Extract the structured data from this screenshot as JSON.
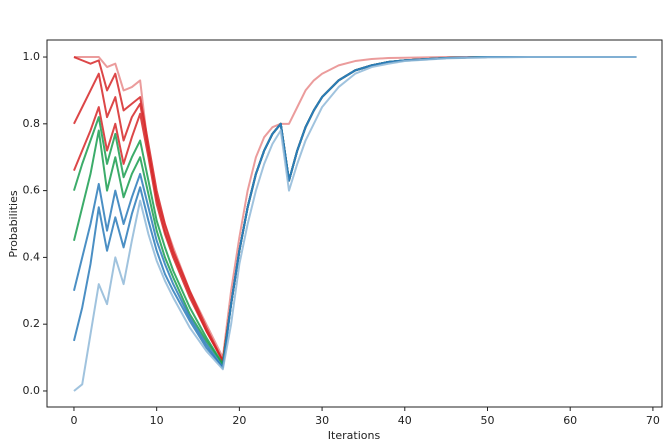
{
  "chart_data": {
    "type": "line",
    "xlabel": "Iterations",
    "ylabel": "Probabilities",
    "x": [
      0,
      1,
      2,
      3,
      4,
      5,
      6,
      7,
      8,
      9,
      10,
      11,
      12,
      14,
      16,
      18,
      19,
      20,
      21,
      22,
      23,
      24,
      25,
      26,
      27,
      28,
      29,
      30,
      32,
      34,
      36,
      38,
      40,
      45,
      50,
      55,
      60,
      68
    ],
    "series": [
      {
        "color": "#e88b8b",
        "values": [
          1.0,
          1.0,
          1.0,
          1.0,
          0.97,
          0.98,
          0.9,
          0.91,
          0.93,
          0.72,
          0.58,
          0.5,
          0.43,
          0.3,
          0.2,
          0.1,
          0.3,
          0.46,
          0.6,
          0.7,
          0.76,
          0.79,
          0.8,
          0.8,
          0.85,
          0.9,
          0.93,
          0.95,
          0.975,
          0.988,
          0.994,
          0.997,
          0.998,
          1.0,
          1.0,
          1.0,
          1.0,
          1.0
        ]
      },
      {
        "color": "#d62728",
        "values": [
          1.0,
          0.99,
          0.98,
          0.99,
          0.9,
          0.95,
          0.84,
          0.86,
          0.88,
          0.74,
          0.6,
          0.5,
          0.42,
          0.3,
          0.19,
          0.09,
          0.26,
          0.42,
          0.55,
          0.65,
          0.72,
          0.77,
          0.8,
          0.63,
          0.72,
          0.79,
          0.84,
          0.88,
          0.93,
          0.96,
          0.975,
          0.985,
          0.99,
          0.997,
          1.0,
          1.0,
          1.0,
          1.0
        ]
      },
      {
        "color": "#d62728",
        "values": [
          0.8,
          0.85,
          0.9,
          0.95,
          0.82,
          0.88,
          0.75,
          0.82,
          0.86,
          0.72,
          0.58,
          0.48,
          0.41,
          0.29,
          0.18,
          0.09,
          0.26,
          0.42,
          0.55,
          0.65,
          0.72,
          0.77,
          0.8,
          0.63,
          0.72,
          0.79,
          0.84,
          0.88,
          0.93,
          0.96,
          0.975,
          0.985,
          0.99,
          0.997,
          1.0,
          1.0,
          1.0,
          1.0
        ]
      },
      {
        "color": "#d62728",
        "values": [
          0.66,
          0.72,
          0.78,
          0.85,
          0.72,
          0.8,
          0.68,
          0.76,
          0.83,
          0.7,
          0.56,
          0.47,
          0.4,
          0.28,
          0.18,
          0.09,
          0.26,
          0.42,
          0.55,
          0.65,
          0.72,
          0.77,
          0.8,
          0.63,
          0.72,
          0.79,
          0.84,
          0.88,
          0.93,
          0.96,
          0.975,
          0.985,
          0.99,
          0.997,
          1.0,
          1.0,
          1.0,
          1.0
        ]
      },
      {
        "color": "#1a9e50",
        "values": [
          0.6,
          0.68,
          0.75,
          0.82,
          0.68,
          0.77,
          0.64,
          0.7,
          0.75,
          0.63,
          0.51,
          0.43,
          0.36,
          0.25,
          0.16,
          0.08,
          0.26,
          0.42,
          0.55,
          0.65,
          0.72,
          0.77,
          0.8,
          0.63,
          0.72,
          0.79,
          0.84,
          0.88,
          0.93,
          0.96,
          0.975,
          0.985,
          0.99,
          0.997,
          1.0,
          1.0,
          1.0,
          1.0
        ]
      },
      {
        "color": "#1a9e50",
        "values": [
          0.45,
          0.55,
          0.65,
          0.78,
          0.6,
          0.7,
          0.58,
          0.65,
          0.7,
          0.59,
          0.48,
          0.4,
          0.34,
          0.23,
          0.15,
          0.08,
          0.26,
          0.42,
          0.55,
          0.65,
          0.72,
          0.77,
          0.8,
          0.63,
          0.72,
          0.79,
          0.84,
          0.88,
          0.93,
          0.96,
          0.975,
          0.985,
          0.99,
          0.997,
          1.0,
          1.0,
          1.0,
          1.0
        ]
      },
      {
        "color": "#2b7bba",
        "values": [
          0.3,
          0.4,
          0.5,
          0.62,
          0.48,
          0.6,
          0.5,
          0.58,
          0.65,
          0.55,
          0.45,
          0.38,
          0.32,
          0.22,
          0.14,
          0.07,
          0.26,
          0.42,
          0.55,
          0.65,
          0.72,
          0.77,
          0.8,
          0.63,
          0.72,
          0.79,
          0.84,
          0.88,
          0.93,
          0.96,
          0.975,
          0.985,
          0.99,
          0.997,
          1.0,
          1.0,
          1.0,
          1.0
        ]
      },
      {
        "color": "#2b7bba",
        "values": [
          0.15,
          0.25,
          0.38,
          0.55,
          0.42,
          0.52,
          0.43,
          0.53,
          0.61,
          0.51,
          0.42,
          0.35,
          0.3,
          0.21,
          0.13,
          0.07,
          0.26,
          0.42,
          0.55,
          0.65,
          0.72,
          0.77,
          0.8,
          0.63,
          0.72,
          0.79,
          0.84,
          0.88,
          0.93,
          0.96,
          0.975,
          0.985,
          0.99,
          0.997,
          1.0,
          1.0,
          1.0,
          1.0
        ]
      },
      {
        "color": "#8fb8d8",
        "values": [
          0.0,
          0.02,
          0.17,
          0.32,
          0.26,
          0.4,
          0.32,
          0.45,
          0.57,
          0.47,
          0.39,
          0.33,
          0.28,
          0.19,
          0.12,
          0.065,
          0.2,
          0.38,
          0.5,
          0.6,
          0.68,
          0.74,
          0.78,
          0.6,
          0.68,
          0.75,
          0.8,
          0.85,
          0.91,
          0.95,
          0.97,
          0.98,
          0.988,
          0.996,
          0.999,
          1.0,
          1.0,
          1.0
        ]
      }
    ],
    "xlim": [
      -3.26,
      71.1
    ],
    "ylim": [
      -0.048,
      1.051
    ],
    "xticks": [
      0,
      10,
      20,
      30,
      40,
      50,
      60,
      70
    ],
    "yticks": [
      {
        "value": 0.0,
        "label": "0.0"
      },
      0.2,
      0.4,
      0.6,
      0.8,
      {
        "value": 1.0,
        "label": "1.0"
      }
    ]
  }
}
